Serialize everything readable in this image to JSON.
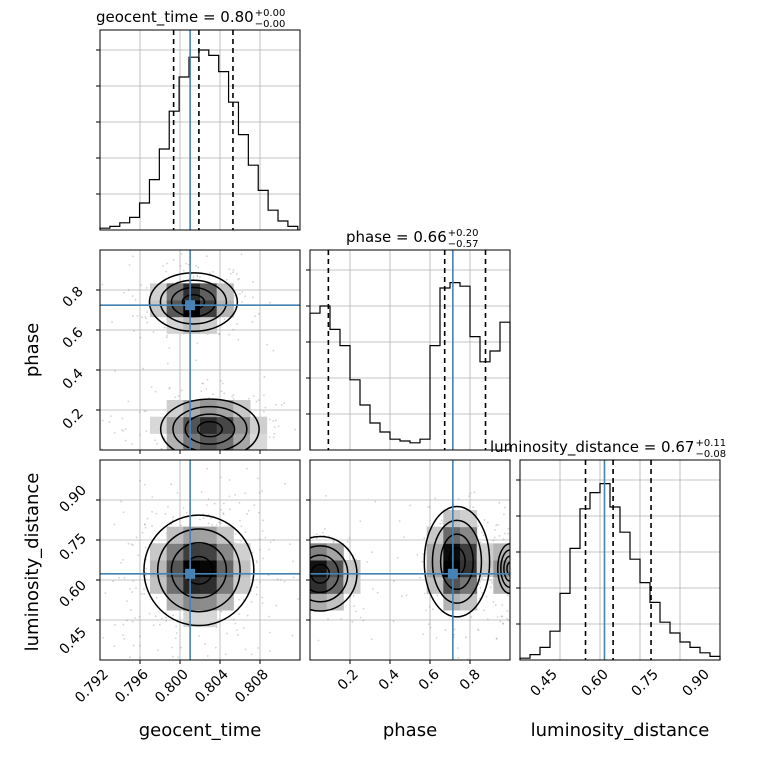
{
  "chart_data": {
    "type": "corner",
    "parameters": [
      "geocent_time",
      "phase",
      "luminosity_distance"
    ],
    "colors": {
      "truth": "#4682b4",
      "hist": "#000000",
      "grid": "#b0b0b0",
      "sample": "#808080"
    },
    "grid": true,
    "panels": [
      {
        "kind": "hist",
        "param": "geocent_time",
        "title": {
          "text": "geocent_time = 0.80",
          "sup": "+0.00",
          "sub": "−0.00"
        },
        "xlim": [
          0.7915,
          0.8097
        ],
        "truth": 0.7997,
        "quantiles": [
          0.7982,
          0.8005,
          0.8036
        ],
        "bin_edges": [
          0.7915,
          0.7924,
          0.7933,
          0.7942,
          0.7951,
          0.796,
          0.7969,
          0.7978,
          0.7987,
          0.7996,
          0.8005,
          0.8014,
          0.8023,
          0.8032,
          0.8041,
          0.805,
          0.8059,
          0.8068,
          0.8077,
          0.8086,
          0.8095
        ],
        "counts": [
          0.01,
          0.02,
          0.04,
          0.07,
          0.15,
          0.28,
          0.45,
          0.66,
          0.85,
          0.96,
          1.0,
          0.97,
          0.88,
          0.71,
          0.53,
          0.36,
          0.22,
          0.11,
          0.05,
          0.02
        ]
      },
      {
        "kind": "hist",
        "param": "phase",
        "title": {
          "text": "phase = 0.66",
          "sup": "+0.20",
          "sub": "−0.57"
        },
        "xlim": [
          0.0,
          0.98
        ],
        "truth": 0.7,
        "quantiles": [
          0.09,
          0.66,
          0.86
        ],
        "bin_edges": [
          0.0,
          0.049,
          0.098,
          0.147,
          0.196,
          0.245,
          0.294,
          0.343,
          0.392,
          0.441,
          0.49,
          0.539,
          0.588,
          0.637,
          0.686,
          0.735,
          0.784,
          0.833,
          0.882,
          0.931,
          0.98
        ],
        "counts": [
          0.76,
          0.8,
          0.67,
          0.58,
          0.39,
          0.25,
          0.15,
          0.1,
          0.06,
          0.05,
          0.04,
          0.06,
          0.58,
          0.9,
          0.93,
          0.91,
          0.63,
          0.49,
          0.55,
          0.71
        ]
      },
      {
        "kind": "hist",
        "param": "luminosity_distance",
        "title": {
          "text": "luminosity_distance = 0.67",
          "sup": "+0.11",
          "sub": "−0.08"
        },
        "xlim": [
          0.395,
          0.975
        ],
        "truth": 0.64,
        "quantiles": [
          0.585,
          0.665,
          0.775
        ],
        "bin_edges": [
          0.395,
          0.424,
          0.453,
          0.482,
          0.511,
          0.54,
          0.569,
          0.598,
          0.627,
          0.656,
          0.685,
          0.714,
          0.743,
          0.772,
          0.801,
          0.83,
          0.859,
          0.888,
          0.917,
          0.946,
          0.975
        ],
        "counts": [
          0.01,
          0.03,
          0.07,
          0.16,
          0.37,
          0.62,
          0.84,
          0.93,
          0.98,
          0.85,
          0.71,
          0.56,
          0.43,
          0.32,
          0.21,
          0.15,
          0.1,
          0.07,
          0.04,
          0.02
        ]
      },
      {
        "kind": "2d",
        "x": "geocent_time",
        "y": "phase",
        "xlim": [
          0.7915,
          0.8097
        ],
        "ylim": [
          0.02,
          0.98
        ],
        "truth": [
          0.7997,
          0.715
        ],
        "modes": [
          {
            "center": [
              0.8,
              0.73
            ],
            "spread": [
              0.002,
              0.07
            ],
            "weight": 1.0
          },
          {
            "center": [
              0.8015,
              0.12
            ],
            "spread": [
              0.0028,
              0.09
            ],
            "weight": 0.8
          }
        ]
      },
      {
        "kind": "2d",
        "x": "geocent_time",
        "y": "luminosity_distance",
        "xlim": [
          0.7915,
          0.8097
        ],
        "ylim": [
          0.395,
          0.975
        ],
        "truth": [
          0.7997,
          0.645
        ],
        "modes": [
          {
            "center": [
              0.8005,
              0.655
            ],
            "spread": [
              0.0025,
              0.08
            ],
            "weight": 1.0
          }
        ]
      },
      {
        "kind": "2d",
        "x": "phase",
        "y": "luminosity_distance",
        "xlim": [
          0.0,
          0.98
        ],
        "ylim": [
          0.395,
          0.975
        ],
        "truth": [
          0.7,
          0.645
        ],
        "modes": [
          {
            "center": [
              0.05,
              0.645
            ],
            "spread": [
              0.1,
              0.06
            ],
            "weight": 0.9
          },
          {
            "center": [
              0.72,
              0.68
            ],
            "spread": [
              0.08,
              0.08
            ],
            "weight": 1.0
          },
          {
            "center": [
              0.98,
              0.66
            ],
            "spread": [
              0.05,
              0.06
            ],
            "weight": 0.6
          }
        ]
      }
    ],
    "ticks": {
      "geocent_time": [
        "0.792",
        "0.796",
        "0.800",
        "0.804",
        "0.808"
      ],
      "phase_x": [
        "0.2",
        "0.4",
        "0.6",
        "0.8"
      ],
      "phase_y": [
        "0.2",
        "0.4",
        "0.6",
        "0.8"
      ],
      "luminosity_distance": [
        "0.45",
        "0.60",
        "0.75",
        "0.90"
      ]
    },
    "axis_labels": {
      "x": [
        "geocent_time",
        "phase",
        "luminosity_distance"
      ],
      "y": [
        "phase",
        "luminosity_distance"
      ]
    }
  }
}
